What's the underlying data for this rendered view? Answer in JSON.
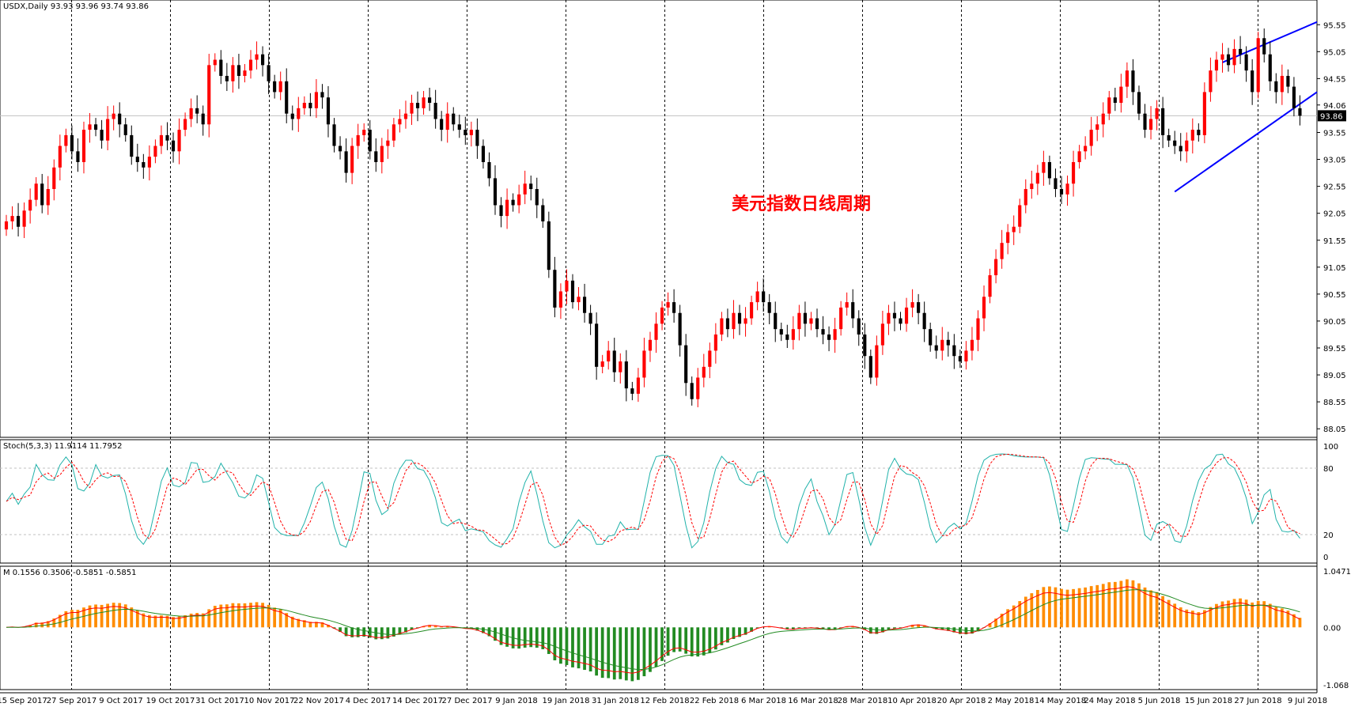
{
  "chart_title": "美元指数日线周期",
  "main_panel": {
    "label": "USDX,Daily  93.93 93.96 93.74 93.86",
    "current_price": "93.86",
    "ylim": [
      87.95,
      95.95
    ],
    "yticks": [
      "95.55",
      "95.05",
      "94.55",
      "94.06",
      "93.55",
      "93.05",
      "92.55",
      "92.05",
      "91.55",
      "91.05",
      "90.55",
      "90.05",
      "89.55",
      "89.05",
      "88.55",
      "88.05"
    ]
  },
  "stoch_panel": {
    "label": "Stoch(5,3,3) 11.9114 11.7952",
    "yticks": [
      "100",
      "80",
      "20",
      "0"
    ]
  },
  "macd_panel": {
    "label": "M 0.1556 0.3506 -0.5851 -0.5851",
    "yticks": [
      "1.0471",
      "0.00",
      "-1.068"
    ]
  },
  "xlabels": [
    "15 Sep 2017",
    "27 Sep 2017",
    "9 Oct 2017",
    "19 Oct 2017",
    "31 Oct 2017",
    "10 Nov 2017",
    "22 Nov 2017",
    "4 Dec 2017",
    "14 Dec 2017",
    "27 Dec 2017",
    "9 Jan 2018",
    "19 Jan 2018",
    "31 Jan 2018",
    "12 Feb 2018",
    "22 Feb 2018",
    "6 Mar 2018",
    "16 Mar 2018",
    "28 Mar 2018",
    "10 Apr 2018",
    "20 Apr 2018",
    "2 May 2018",
    "14 May 2018",
    "24 May 2018",
    "5 Jun 2018",
    "15 Jun 2018",
    "27 Jun 2018",
    "9 Jul 2018"
  ],
  "colors": {
    "bull": "#ff0000",
    "bear": "#000000",
    "trend": "#0000ff",
    "stoch_main": "#20b2aa",
    "stoch_signal": "#ff0000",
    "macd_pos": "#ff8c00",
    "macd_neg": "#228b22",
    "macd_fast": "#ff0000",
    "macd_slow": "#228b22"
  },
  "chart_data": {
    "type": "candlestick",
    "closes": [
      91.9,
      92.0,
      91.8,
      92.1,
      92.3,
      92.6,
      92.2,
      92.5,
      92.9,
      93.3,
      93.5,
      93.2,
      93.0,
      93.6,
      93.7,
      93.6,
      93.4,
      93.8,
      93.9,
      93.7,
      93.5,
      93.1,
      93.0,
      92.9,
      93.1,
      93.3,
      93.5,
      93.4,
      93.2,
      93.6,
      93.8,
      94.0,
      93.9,
      93.7,
      94.8,
      94.9,
      94.6,
      94.5,
      94.8,
      94.6,
      94.7,
      94.9,
      95.0,
      94.8,
      94.5,
      94.3,
      94.5,
      93.9,
      93.8,
      94.0,
      94.1,
      94.0,
      94.3,
      94.2,
      93.7,
      93.3,
      93.2,
      92.8,
      93.3,
      93.5,
      93.6,
      93.2,
      93.0,
      93.3,
      93.4,
      93.7,
      93.8,
      93.9,
      94.1,
      94.0,
      94.2,
      94.1,
      93.8,
      93.6,
      93.9,
      93.7,
      93.6,
      93.5,
      93.6,
      93.3,
      93.0,
      92.7,
      92.2,
      92.0,
      92.3,
      92.2,
      92.4,
      92.6,
      92.5,
      92.2,
      91.9,
      91.0,
      90.3,
      90.6,
      90.8,
      90.4,
      90.5,
      90.2,
      90.0,
      89.2,
      89.3,
      89.5,
      89.1,
      89.3,
      88.8,
      88.7,
      89.0,
      89.5,
      89.7,
      90.0,
      90.3,
      90.4,
      90.2,
      89.6,
      88.9,
      88.6,
      89.0,
      89.2,
      89.5,
      89.8,
      90.1,
      89.9,
      90.2,
      90.0,
      90.1,
      90.4,
      90.6,
      90.4,
      90.2,
      89.9,
      89.8,
      89.7,
      89.9,
      90.2,
      90.0,
      90.1,
      89.9,
      89.8,
      89.7,
      89.9,
      90.3,
      90.4,
      90.1,
      89.8,
      89.4,
      89.0,
      89.6,
      90.0,
      90.2,
      90.1,
      90.0,
      90.3,
      90.4,
      90.2,
      89.9,
      89.6,
      89.5,
      89.7,
      89.6,
      89.4,
      89.3,
      89.5,
      89.7,
      90.1,
      90.5,
      90.9,
      91.2,
      91.5,
      91.7,
      91.8,
      92.2,
      92.5,
      92.6,
      92.8,
      93.0,
      92.7,
      92.5,
      92.4,
      92.6,
      93.0,
      93.2,
      93.3,
      93.6,
      93.7,
      93.9,
      94.2,
      94.1,
      94.4,
      94.7,
      94.3,
      93.9,
      93.6,
      93.8,
      94.0,
      93.5,
      93.4,
      93.3,
      93.2,
      93.4,
      93.6,
      93.5,
      94.3,
      94.7,
      94.9,
      95.0,
      94.8,
      95.1,
      95.0,
      94.7,
      94.3,
      95.3,
      95.0,
      94.5,
      94.3,
      94.6,
      94.4,
      94.0,
      93.86
    ],
    "indicators": [
      "Stoch(5,3,3)",
      "MACD"
    ]
  }
}
